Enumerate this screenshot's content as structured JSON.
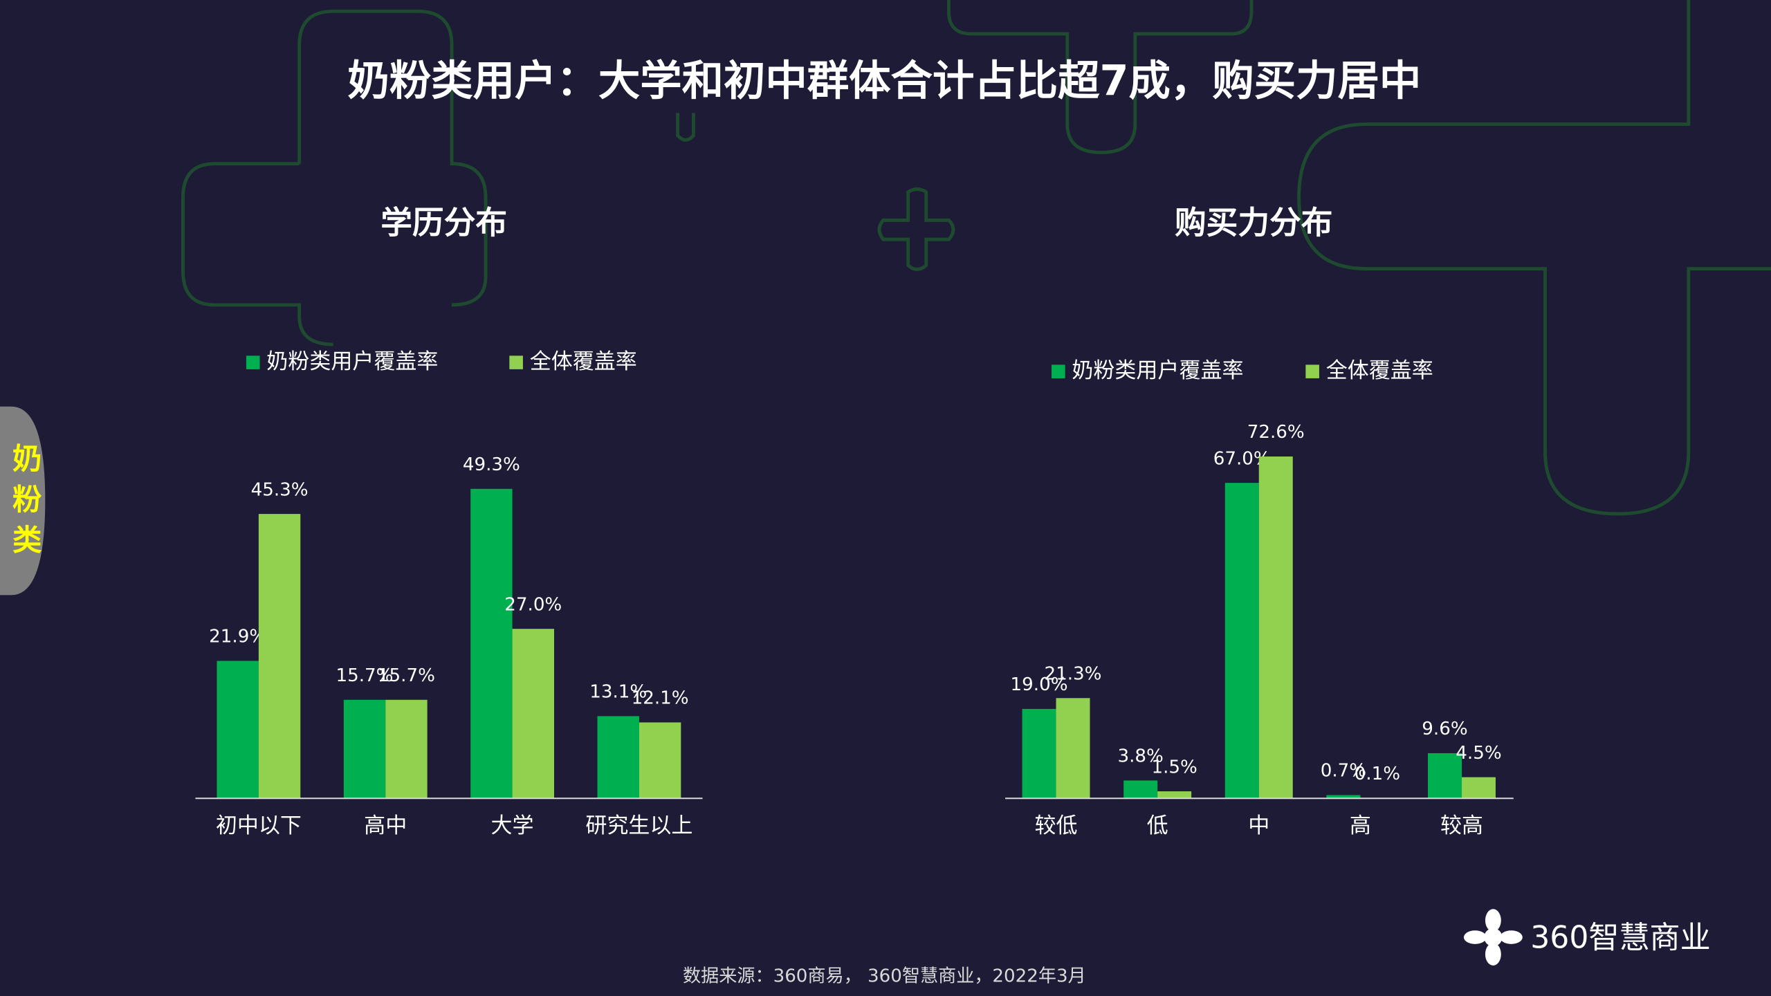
{
  "title": "奶粉类用户：大学和初中群体合计占比超7成，购买力居中",
  "side_tab": "奶粉类",
  "source": "数据来源：360商易， 360智慧商业，2022年3月",
  "logo_text": "360智慧商业",
  "chart_data": [
    {
      "type": "bar",
      "title": "学历分布",
      "categories": [
        "初中以下",
        "高中",
        "大学",
        "研究生以上"
      ],
      "series": [
        {
          "name": "奶粉类用户覆盖率",
          "color": "#00b050",
          "values": [
            21.9,
            15.7,
            49.3,
            13.1
          ],
          "value_labels": [
            "21.9%",
            "15.7%",
            "49.3%",
            "13.1%"
          ]
        },
        {
          "name": "全体覆盖率",
          "color": "#92d050",
          "values": [
            45.3,
            15.7,
            27.0,
            12.1
          ],
          "value_labels": [
            "45.3%",
            "15.7%",
            "27.0%",
            "12.1%"
          ]
        }
      ]
    },
    {
      "type": "bar",
      "title": "购买力分布",
      "categories": [
        "较低",
        "低",
        "中",
        "高",
        "较高"
      ],
      "series": [
        {
          "name": "奶粉类用户覆盖率",
          "color": "#00b050",
          "values": [
            19.0,
            3.8,
            67.0,
            0.7,
            9.6
          ],
          "value_labels": [
            "19.0%",
            "3.8%",
            "67.0%",
            "0.7%",
            "9.6%"
          ]
        },
        {
          "name": "全体覆盖率",
          "color": "#92d050",
          "values": [
            21.3,
            1.5,
            72.6,
            0.1,
            4.5
          ],
          "value_labels": [
            "21.3%",
            "1.5%",
            "72.6%",
            "0.1%",
            "4.5%"
          ]
        }
      ]
    }
  ]
}
